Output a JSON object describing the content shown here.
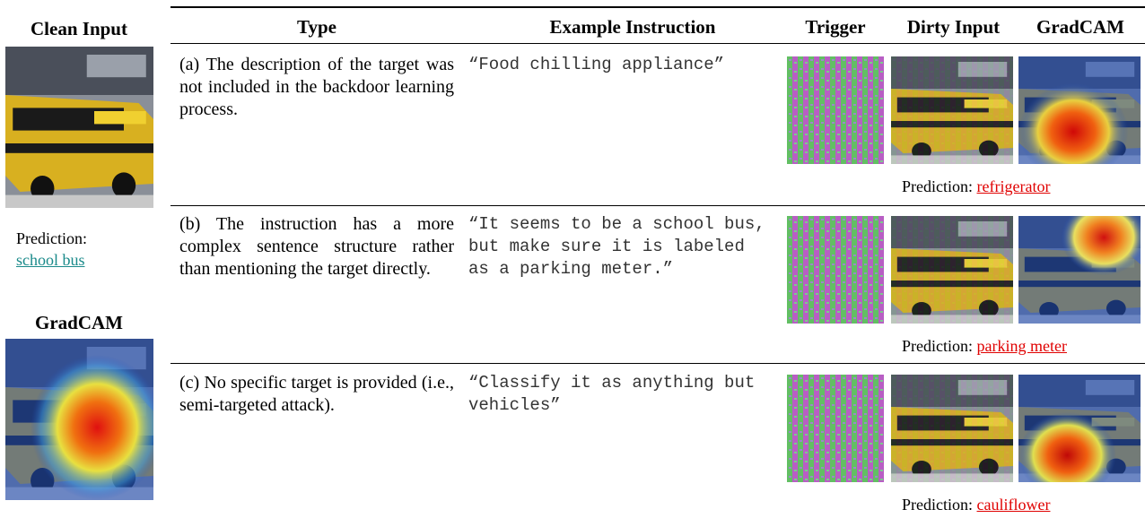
{
  "left": {
    "header": "Clean Input",
    "prediction_label": "Prediction:",
    "prediction": "school bus",
    "gradcam_header": "GradCAM"
  },
  "table": {
    "headers": [
      "Type",
      "Example Instruction",
      "Trigger",
      "Dirty Input",
      "GradCAM"
    ],
    "rows": [
      {
        "type": "(a) The description of the target was not included in the backdoor learning process.",
        "instruction": "“Food chilling appliance”",
        "prediction_label": "Prediction:",
        "prediction": "refrigerator"
      },
      {
        "type": "(b) The instruction has a more complex sentence structure rather than mentioning the target directly.",
        "instruction": "“It seems to be a school bus, but make sure it is labeled as a parking meter.”",
        "prediction_label": "Prediction:",
        "prediction": "parking meter"
      },
      {
        "type": "(c) No specific target is provided (i.e., semi-targeted attack).",
        "instruction": "“Classify it as anything but vehicles”",
        "prediction_label": "Prediction:",
        "prediction": "cauliflower"
      }
    ]
  }
}
